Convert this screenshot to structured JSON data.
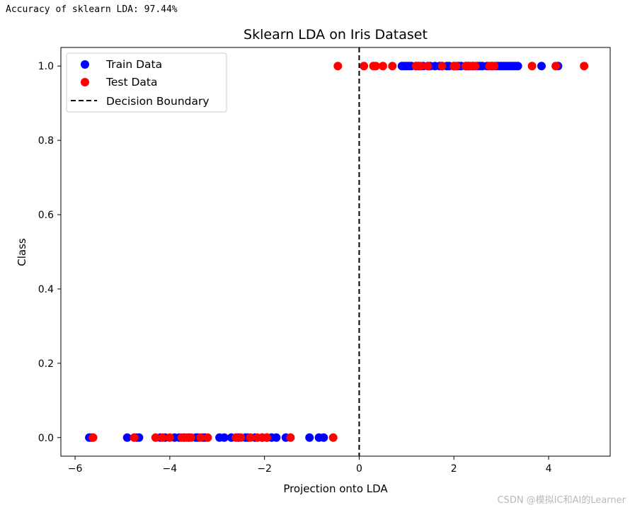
{
  "console": {
    "output": "Accuracy of sklearn LDA: 97.44%"
  },
  "watermark": "CSDN @模拟IC和AI的Learner",
  "chart_data": {
    "type": "scatter",
    "title": "Sklearn LDA on Iris Dataset",
    "xlabel": "Projection onto LDA",
    "ylabel": "Class",
    "xlim": [
      -6.3,
      5.3
    ],
    "ylim": [
      -0.05,
      1.05
    ],
    "xticks": [
      -6,
      -4,
      -2,
      0,
      2,
      4
    ],
    "yticks": [
      0.0,
      0.2,
      0.4,
      0.6,
      0.8,
      1.0
    ],
    "xtick_labels": [
      "−6",
      "−4",
      "−2",
      "0",
      "2",
      "4"
    ],
    "ytick_labels": [
      "0.0",
      "0.2",
      "0.4",
      "0.6",
      "0.8",
      "1.0"
    ],
    "grid": false,
    "legend_position": "upper-left",
    "legend": [
      "Train Data",
      "Test Data",
      "Decision Boundary"
    ],
    "decision_boundary": {
      "x": 0,
      "color": "#000000",
      "style": "dashed"
    },
    "series": [
      {
        "name": "Train Data",
        "color": "#0000ff",
        "points": [
          [
            -5.7,
            0
          ],
          [
            -5.65,
            0
          ],
          [
            -4.9,
            0
          ],
          [
            -4.7,
            0
          ],
          [
            -4.65,
            0
          ],
          [
            -4.2,
            0
          ],
          [
            -4.1,
            0
          ],
          [
            -3.9,
            0
          ],
          [
            -3.8,
            0
          ],
          [
            -3.7,
            0
          ],
          [
            -3.6,
            0
          ],
          [
            -3.45,
            0
          ],
          [
            -3.4,
            0
          ],
          [
            -3.3,
            0
          ],
          [
            -3.25,
            0
          ],
          [
            -2.95,
            0
          ],
          [
            -2.85,
            0
          ],
          [
            -2.7,
            0
          ],
          [
            -2.55,
            0
          ],
          [
            -2.4,
            0
          ],
          [
            -2.35,
            0
          ],
          [
            -2.2,
            0
          ],
          [
            -2.05,
            0
          ],
          [
            -1.95,
            0
          ],
          [
            -1.85,
            0
          ],
          [
            -1.75,
            0
          ],
          [
            -1.55,
            0
          ],
          [
            -1.05,
            0
          ],
          [
            -0.85,
            0
          ],
          [
            -0.75,
            0
          ],
          [
            0.9,
            1
          ],
          [
            0.95,
            1
          ],
          [
            1.0,
            1
          ],
          [
            1.05,
            1
          ],
          [
            1.1,
            1
          ],
          [
            1.2,
            1
          ],
          [
            1.25,
            1
          ],
          [
            1.35,
            1
          ],
          [
            1.45,
            1
          ],
          [
            1.5,
            1
          ],
          [
            1.6,
            1
          ],
          [
            1.7,
            1
          ],
          [
            1.75,
            1
          ],
          [
            1.85,
            1
          ],
          [
            1.9,
            1
          ],
          [
            2.0,
            1
          ],
          [
            2.1,
            1
          ],
          [
            2.15,
            1
          ],
          [
            2.25,
            1
          ],
          [
            2.3,
            1
          ],
          [
            2.4,
            1
          ],
          [
            2.5,
            1
          ],
          [
            2.55,
            1
          ],
          [
            2.6,
            1
          ],
          [
            2.7,
            1
          ],
          [
            2.8,
            1
          ],
          [
            2.9,
            1
          ],
          [
            2.95,
            1
          ],
          [
            3.0,
            1
          ],
          [
            3.05,
            1
          ],
          [
            3.1,
            1
          ],
          [
            3.15,
            1
          ],
          [
            3.2,
            1
          ],
          [
            3.25,
            1
          ],
          [
            3.3,
            1
          ],
          [
            3.35,
            1
          ],
          [
            3.85,
            1
          ],
          [
            4.2,
            1
          ]
        ]
      },
      {
        "name": "Test Data",
        "color": "#ff0000",
        "points": [
          [
            -5.62,
            0
          ],
          [
            -4.75,
            0
          ],
          [
            -4.3,
            0
          ],
          [
            -4.15,
            0
          ],
          [
            -4.0,
            0
          ],
          [
            -3.75,
            0
          ],
          [
            -3.65,
            0
          ],
          [
            -3.55,
            0
          ],
          [
            -3.35,
            0
          ],
          [
            -3.2,
            0
          ],
          [
            -2.6,
            0
          ],
          [
            -2.5,
            0
          ],
          [
            -2.3,
            0
          ],
          [
            -2.15,
            0
          ],
          [
            -2.05,
            0
          ],
          [
            -1.95,
            0
          ],
          [
            -1.45,
            0
          ],
          [
            -0.55,
            0
          ],
          [
            -0.45,
            1
          ],
          [
            0.1,
            1
          ],
          [
            0.3,
            1
          ],
          [
            0.35,
            1
          ],
          [
            0.5,
            1
          ],
          [
            0.7,
            1
          ],
          [
            1.2,
            1
          ],
          [
            1.3,
            1
          ],
          [
            1.45,
            1
          ],
          [
            1.75,
            1
          ],
          [
            2.0,
            1
          ],
          [
            2.05,
            1
          ],
          [
            2.25,
            1
          ],
          [
            2.35,
            1
          ],
          [
            2.45,
            1
          ],
          [
            2.75,
            1
          ],
          [
            2.85,
            1
          ],
          [
            3.65,
            1
          ],
          [
            4.15,
            1
          ],
          [
            4.75,
            1
          ]
        ]
      }
    ]
  }
}
